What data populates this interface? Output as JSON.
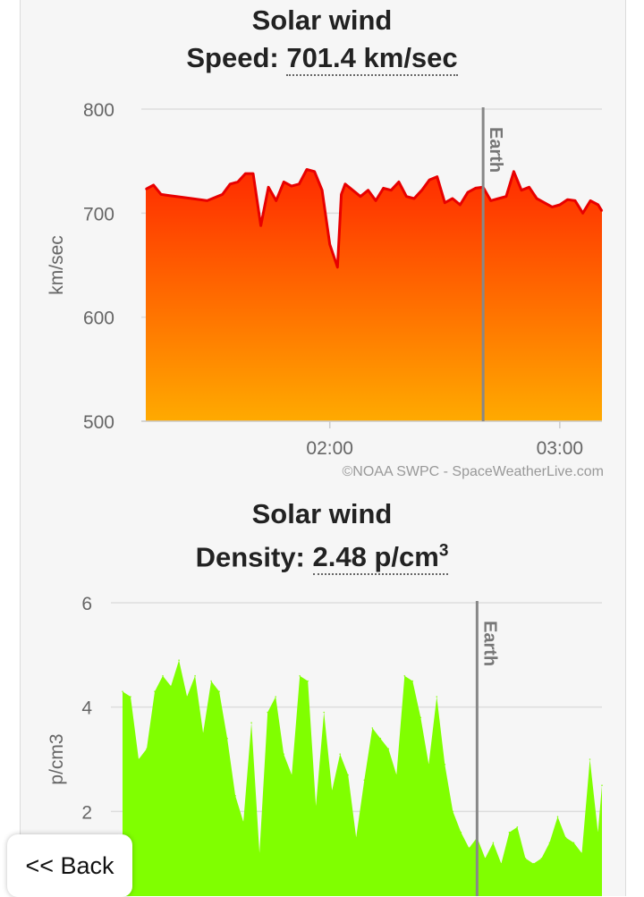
{
  "charts": {
    "speed": {
      "title": "Solar wind",
      "reading_label": "Speed:",
      "reading_value": "701.4 km/sec",
      "credit": "©NOAA SWPC - SpaceWeatherLive.com",
      "marker_label": "Earth"
    },
    "density": {
      "title": "Solar wind",
      "reading_label": "Density:",
      "reading_value": "2.48 p/cm",
      "reading_sup": "3",
      "marker_label": "Earth"
    }
  },
  "nav": {
    "back_label": "<< Back"
  },
  "colors": {
    "speed_fill_top": "#ff2a00",
    "speed_fill_bottom": "#ffaa00",
    "speed_line": "#e80000",
    "density_fill": "#80ff00",
    "marker": "#888888",
    "grid": "#dddddd"
  },
  "chart_data": [
    {
      "type": "area",
      "title": "Solar wind",
      "ylabel": "km/sec",
      "ylim": [
        500,
        800
      ],
      "yticks": [
        500,
        600,
        700,
        800
      ],
      "xlim": [
        "01:12",
        "03:11"
      ],
      "xticks": [
        "02:00",
        "03:00"
      ],
      "marker": {
        "x": "02:40",
        "label": "Earth"
      },
      "grid": true,
      "series": [
        {
          "x": [
            "01:12",
            "01:14",
            "01:16",
            "01:18",
            "01:20",
            "01:24",
            "01:28",
            "01:32",
            "01:34",
            "01:36",
            "01:38",
            "01:40",
            "01:42",
            "01:44",
            "01:46",
            "01:48",
            "01:50",
            "01:52",
            "01:54",
            "01:56",
            "01:58",
            "02:00",
            "02:02",
            "02:03",
            "02:04",
            "02:06",
            "02:08",
            "02:10",
            "02:12",
            "02:14",
            "02:16",
            "02:18",
            "02:20",
            "02:22",
            "02:24",
            "02:26",
            "02:28",
            "02:30",
            "02:32",
            "02:34",
            "02:36",
            "02:38",
            "02:40",
            "02:42",
            "02:44",
            "02:46",
            "02:48",
            "02:50",
            "02:52",
            "02:54",
            "02:56",
            "02:58",
            "03:00",
            "03:02",
            "03:04",
            "03:06",
            "03:08",
            "03:10",
            "03:11"
          ],
          "y": [
            723,
            727,
            718,
            717,
            716,
            714,
            712,
            718,
            728,
            730,
            738,
            738,
            688,
            725,
            712,
            730,
            726,
            728,
            742,
            740,
            722,
            670,
            648,
            718,
            728,
            722,
            716,
            722,
            712,
            724,
            722,
            730,
            716,
            714,
            722,
            732,
            735,
            710,
            714,
            708,
            720,
            724,
            725,
            712,
            714,
            716,
            740,
            722,
            725,
            714,
            710,
            706,
            708,
            713,
            712,
            700,
            712,
            708,
            702
          ]
        }
      ]
    },
    {
      "type": "area",
      "title": "Solar wind",
      "ylabel": "p/cm3",
      "ylim": [
        0,
        6
      ],
      "yticks": [
        2,
        4,
        6
      ],
      "xlim": [
        "01:12",
        "03:11"
      ],
      "marker": {
        "x": "02:40",
        "label": "Earth"
      },
      "grid": true,
      "series": [
        {
          "x": [
            "01:12",
            "01:14",
            "01:16",
            "01:18",
            "01:20",
            "01:22",
            "01:24",
            "01:26",
            "01:28",
            "01:30",
            "01:32",
            "01:34",
            "01:36",
            "01:38",
            "01:40",
            "01:42",
            "01:44",
            "01:46",
            "01:48",
            "01:50",
            "01:52",
            "01:54",
            "01:56",
            "01:58",
            "02:00",
            "02:02",
            "02:04",
            "02:06",
            "02:08",
            "02:10",
            "02:12",
            "02:14",
            "02:16",
            "02:18",
            "02:20",
            "02:22",
            "02:24",
            "02:26",
            "02:28",
            "02:30",
            "02:32",
            "02:34",
            "02:36",
            "02:38",
            "02:40",
            "02:42",
            "02:44",
            "02:46",
            "02:48",
            "02:50",
            "02:52",
            "02:54",
            "02:56",
            "02:58",
            "03:00",
            "03:02",
            "03:04",
            "03:06",
            "03:08",
            "03:10",
            "03:11"
          ],
          "y": [
            4.3,
            4.2,
            3.0,
            3.2,
            4.3,
            4.6,
            4.4,
            4.9,
            4.2,
            4.6,
            3.5,
            4.5,
            4.3,
            3.4,
            2.3,
            1.8,
            3.7,
            1.2,
            3.9,
            4.2,
            3.1,
            2.7,
            4.6,
            4.5,
            2.1,
            3.9,
            2.4,
            3.1,
            2.7,
            1.5,
            2.6,
            3.6,
            3.4,
            3.2,
            2.7,
            4.6,
            4.5,
            3.8,
            2.9,
            4.2,
            2.9,
            2.0,
            1.6,
            1.3,
            1.5,
            1.1,
            1.4,
            1.0,
            1.6,
            1.7,
            1.1,
            1.0,
            1.1,
            1.4,
            1.9,
            1.5,
            1.4,
            1.2,
            3.0,
            1.6,
            2.5
          ]
        }
      ]
    }
  ]
}
